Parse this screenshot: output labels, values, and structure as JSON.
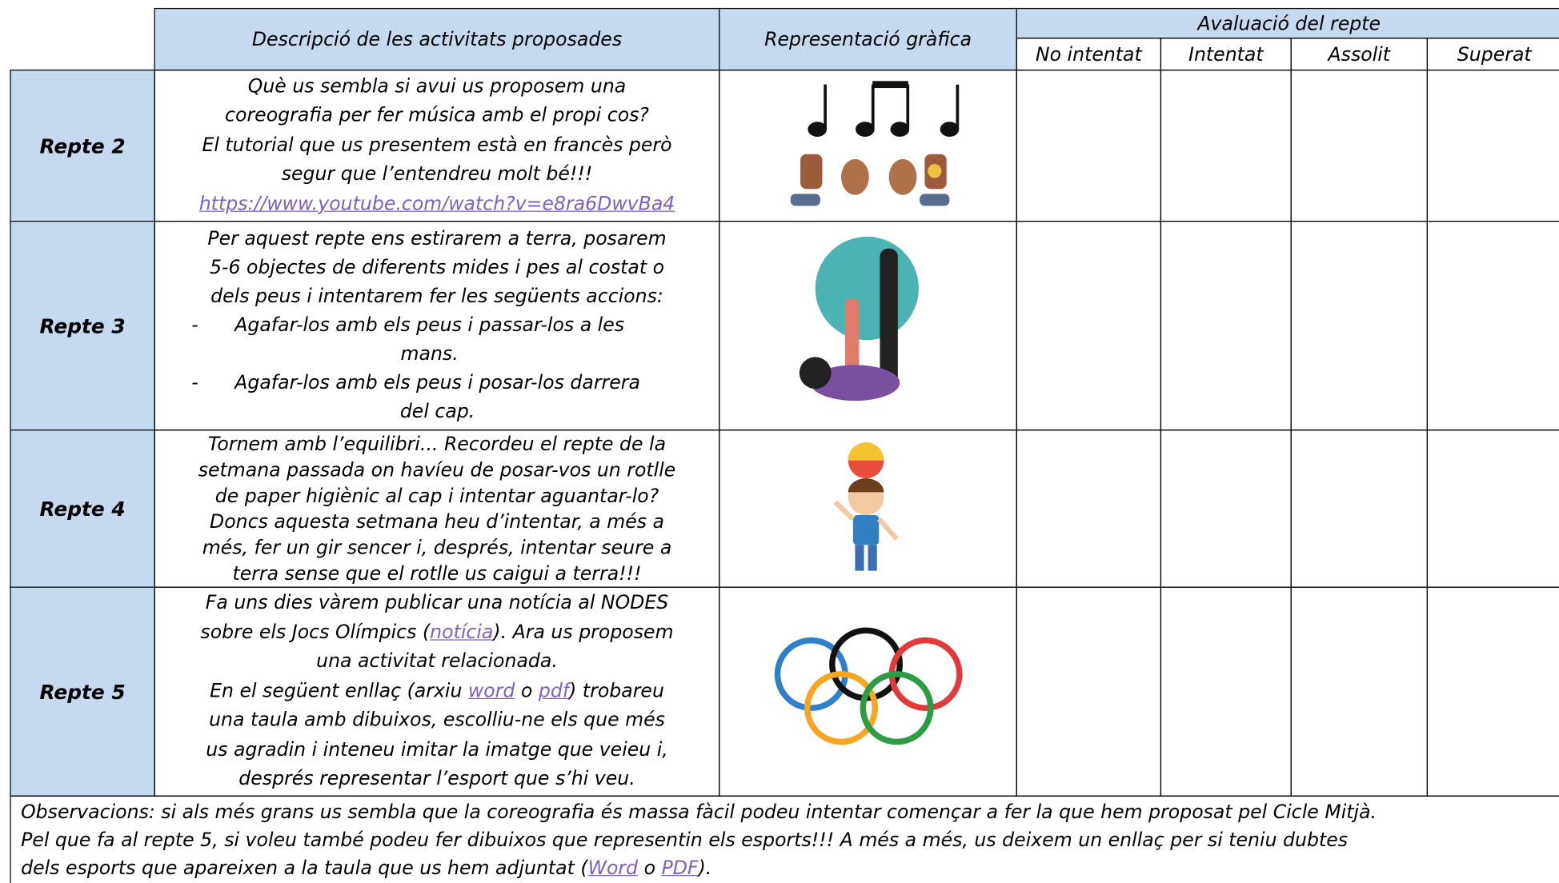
{
  "header": {
    "description": "Descripció de les activitats proposades",
    "graphic": "Representació gràfica",
    "evaluation": "Avaluació del repte",
    "levels": [
      "No intentat",
      "Intentat",
      "Assolit",
      "Superat"
    ]
  },
  "rows": [
    {
      "label": "Repte 2",
      "description": [
        [
          "Què us sembla si avui us proposem una"
        ],
        [
          "coreografia per fer música amb el propi cos?"
        ],
        [
          "El tutorial que us presentem està en francès però"
        ],
        [
          "segur que l’entendreu molt bé!!!"
        ],
        [
          {
            "link": "https://www.youtube.com/watch?v=e8ra6DwvBa4"
          }
        ]
      ]
    },
    {
      "label": "Repte 3",
      "description": [
        [
          "Per aquest repte ens estirarem a terra, posarem"
        ],
        [
          "5-6 objectes de diferents mides i pes al costat o"
        ],
        [
          "dels peus i intentarem fer les següents accions:"
        ],
        {
          "bullet": "-",
          "lines": [
            "Agafar-los amb els peus i passar-los a les",
            "mans."
          ]
        },
        {
          "bullet": "-",
          "lines": [
            "Agafar-los amb els peus i posar-los darrera",
            "del cap."
          ]
        }
      ]
    },
    {
      "label": "Repte 4",
      "description": [
        [
          "Tornem amb l’equilibri... Recordeu el repte de la"
        ],
        [
          "setmana passada on havíeu de posar-vos un rotlle"
        ],
        [
          "de paper higiènic al cap i intentar aguantar-lo?"
        ],
        [
          "Doncs aquesta setmana heu d’intentar, a més a"
        ],
        [
          "més, fer un gir sencer i, després, intentar seure a"
        ],
        [
          "terra sense que el rotlle us caigui a terra!!!"
        ]
      ]
    },
    {
      "label": "Repte 5",
      "description": [
        [
          "Fa uns dies vàrem publicar una notícia al NODES"
        ],
        [
          "sobre els Jocs Olímpics (",
          {
            "link": "notícia"
          },
          "). Ara us proposem"
        ],
        [
          "una activitat relacionada."
        ],
        [
          "En el següent enllaç (arxiu ",
          {
            "link": "word"
          },
          " o ",
          {
            "link": "pdf"
          },
          ") trobareu"
        ],
        [
          "una taula amb dibuixos, escolliu-ne els que més"
        ],
        [
          "us agradin i inteneu imitar la imatge que veieu i,"
        ],
        [
          "després representar l’esport que s’hi veu."
        ]
      ]
    }
  ],
  "observations": [
    [
      "Observacions: si als més grans us sembla que la coreografia és massa fàcil podeu intentar començar a fer la que hem proposat pel Cicle Mitjà."
    ],
    [
      "Pel que fa al repte 5, si voleu també podeu fer dibuixos que representin els esports!!! A més a més, us deixem un enllaç per si teniu dubtes"
    ],
    [
      "dels esports que apareixen a la taula que us hem adjuntat (",
      {
        "link": "Word"
      },
      " o ",
      {
        "link": "PDF"
      },
      ")."
    ]
  ]
}
